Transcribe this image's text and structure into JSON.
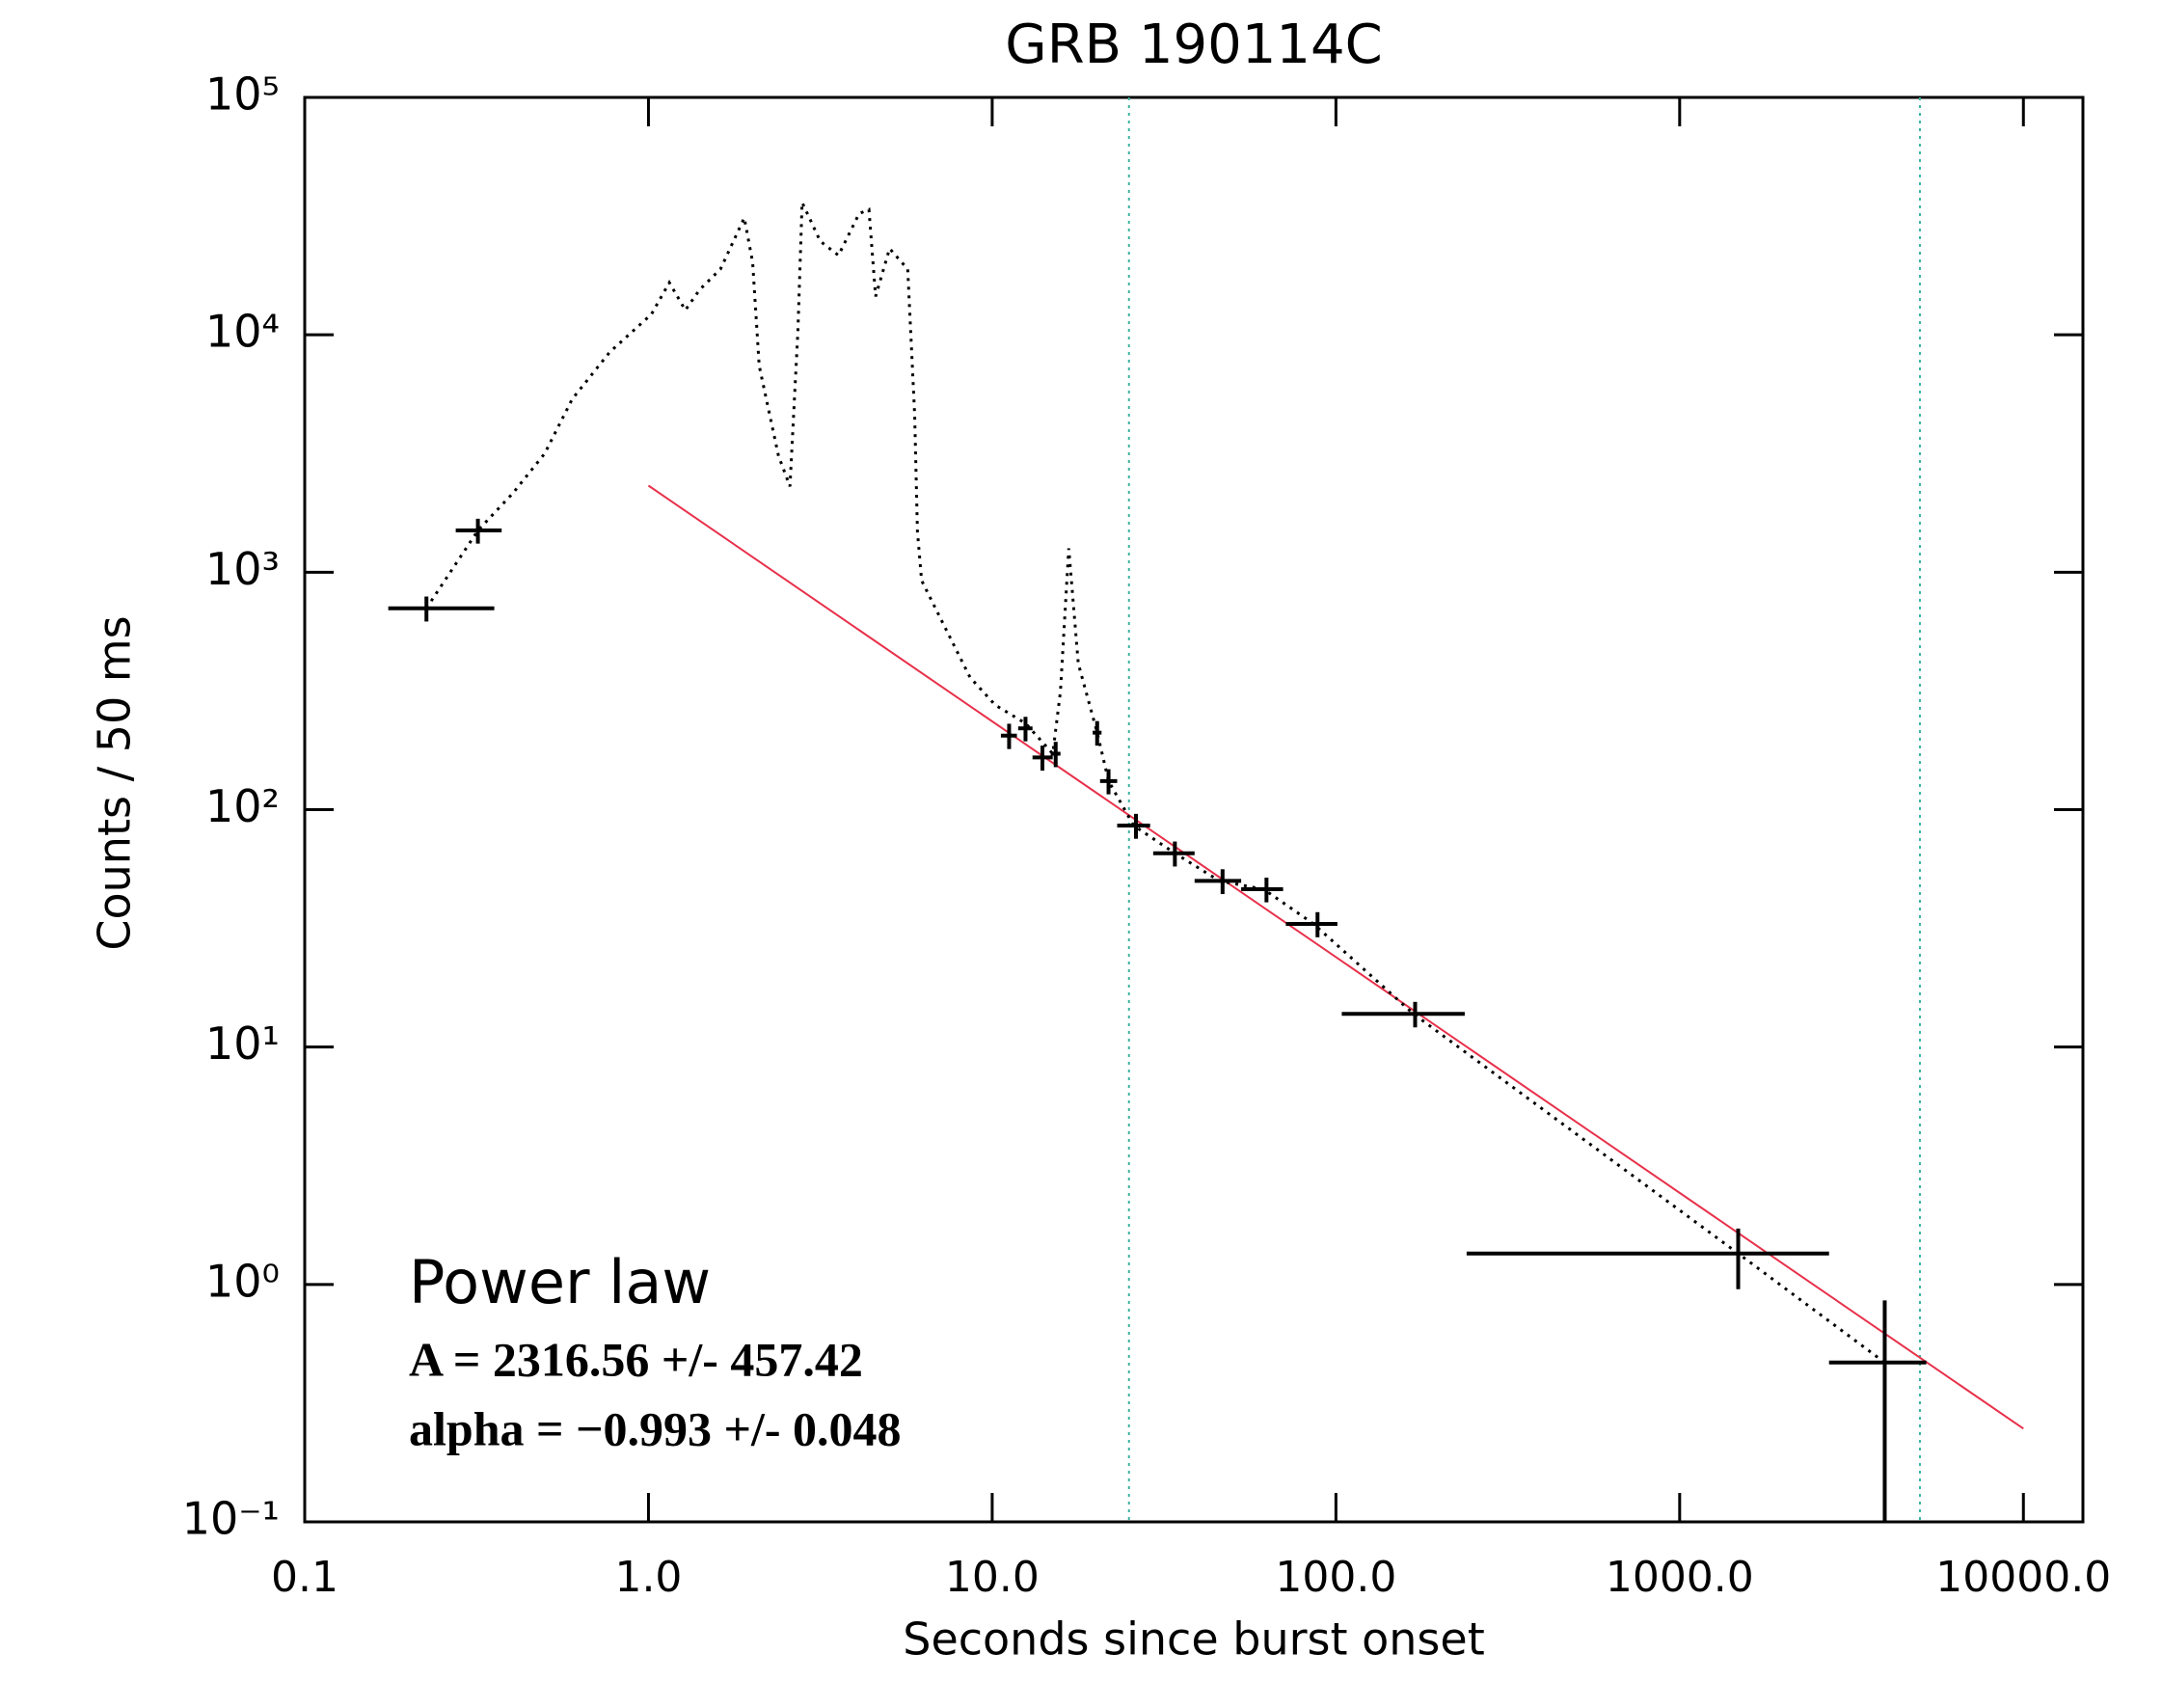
{
  "chart_data": {
    "type": "scatter",
    "title": "GRB 190114C",
    "x_label": "Seconds since burst onset",
    "y_label": "Counts / 50 ms",
    "log_x": true,
    "log_y": true,
    "xlim": [
      0.1,
      14900
    ],
    "ylim": [
      0.1,
      100000
    ],
    "xticks": [
      0.1,
      {
        "value": 1,
        "label": "1.0"
      },
      {
        "value": 10,
        "label": "10.0"
      },
      {
        "value": 100,
        "label": "100.0"
      },
      {
        "value": 1000,
        "label": "1000.0"
      },
      {
        "value": 10000,
        "label": "10000.0"
      }
    ],
    "yticks": [
      {
        "value": 0.1,
        "label": "10⁻¹"
      },
      {
        "value": 1,
        "label": "10⁰"
      },
      {
        "value": 10,
        "label": "10¹"
      },
      {
        "value": 100,
        "label": "10²"
      },
      {
        "value": 1000,
        "label": "10³"
      },
      {
        "value": 10000,
        "label": "10⁴"
      },
      {
        "value": 100000,
        "label": "10⁵"
      }
    ],
    "light_curve": {
      "color": "#000000",
      "x": [
        0.226,
        0.319,
        0.403,
        0.499,
        0.6,
        0.771,
        1.02,
        1.15,
        1.28,
        1.41,
        1.62,
        1.9,
        2.01,
        2.1,
        2.39,
        2.58,
        2.72,
        2.8,
        3.16,
        3.57,
        4.1,
        4.38,
        4.58,
        5.03,
        5.68,
        5.95,
        6.06,
        6.23,
        7.16,
        8.62,
        10.2,
        12.5,
        15.0,
        15.8,
        16.7,
        17.8,
        20.2,
        21.8,
        25.8,
        34.0,
        45.8,
        61.7,
        86.1,
        168,
        1480,
        3950
      ],
      "values": [
        705,
        1500,
        2150,
        3160,
        5360,
        8450,
        12200,
        16600,
        12700,
        15500,
        18900,
        31100,
        20200,
        7400,
        3090,
        2300,
        10300,
        36100,
        24800,
        21600,
        32400,
        33700,
        14500,
        23100,
        18900,
        4620,
        1480,
        923,
        617,
        361,
        276,
        231,
        172,
        315,
        1260,
        412,
        211,
        132,
        85.7,
        65.5,
        50.1,
        46.2,
        33.0,
        13.8,
        1.35,
        0.469
      ]
    },
    "binned": {
      "color": "#000000",
      "x": [
        0.226,
        0.319,
        11.2,
        12.5,
        14.0,
        15.3,
        20.2,
        21.8,
        26.2,
        34.0,
        46.8,
        62.8,
        88.4,
        170,
        1480,
        3950
      ],
      "values": [
        705,
        1500,
        205,
        220,
        166,
        172,
        211,
        132,
        85.7,
        65.5,
        50.1,
        46.2,
        33.0,
        13.8,
        1.35,
        0.469
      ],
      "x_low": [
        0.175,
        0.275,
        10.6,
        11.9,
        13.1,
        14.8,
        19.6,
        20.6,
        23.1,
        29.4,
        38.8,
        53.0,
        71.5,
        104,
        240,
        2720
      ],
      "x_high": [
        0.356,
        0.374,
        11.8,
        13.1,
        15.0,
        15.8,
        20.8,
        23.1,
        28.8,
        38.8,
        53.0,
        70.2,
        101,
        237,
        2720,
        5220
      ],
      "y_low": [
        620,
        1320,
        180,
        194,
        146,
        151,
        186,
        116,
        75.4,
        57.6,
        44.1,
        40.7,
        29.0,
        12.1,
        0.955,
        0.1
      ],
      "y_high": [
        790,
        1680,
        230,
        246,
        186,
        193,
        236,
        148,
        96,
        73.4,
        56.1,
        51.7,
        37.0,
        15.5,
        1.72,
        0.857
      ]
    },
    "fit": {
      "color": "#e8304a",
      "x": [
        1,
        10000
      ],
      "values": [
        2317,
        0.247
      ]
    },
    "markers": {
      "color": "#3cb4a0",
      "x": [
        25,
        5000
      ]
    },
    "annotations": [
      "Power law",
      "A = 2316.56 +/- 457.42",
      "alpha = −0.993 +/- 0.048"
    ]
  }
}
